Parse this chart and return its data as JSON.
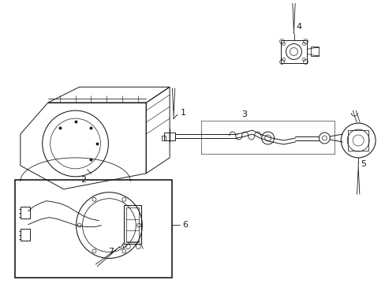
{
  "bg": "#ffffff",
  "lc": "#1a1a1a",
  "lw": 0.7,
  "fw": 4.89,
  "fh": 3.6,
  "dpi": 100
}
